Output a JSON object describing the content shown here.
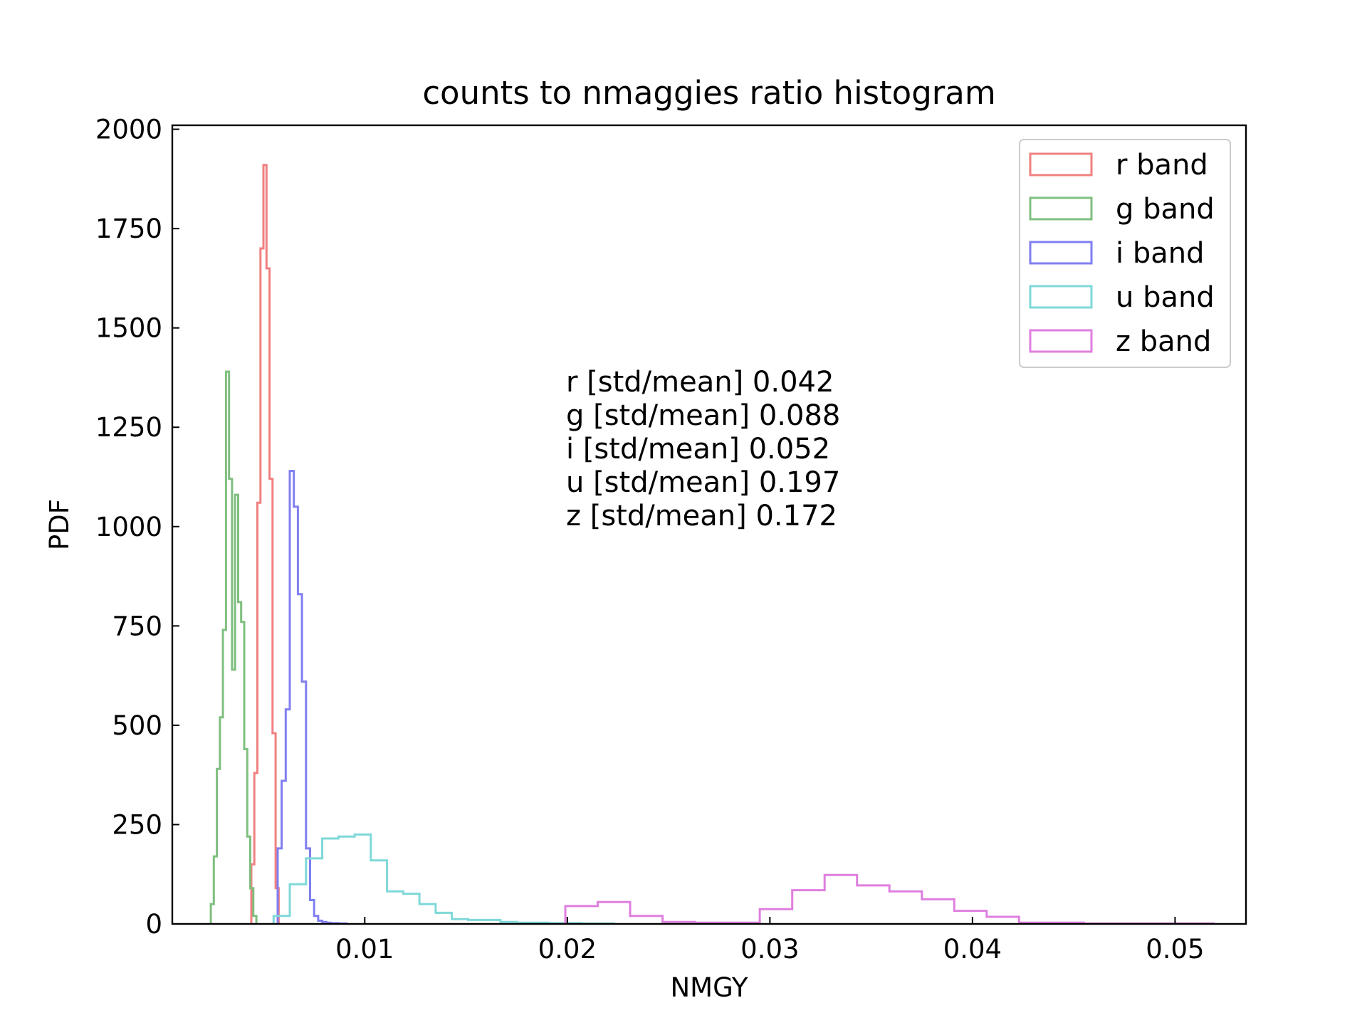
{
  "chart_data": {
    "type": "histogram",
    "title": "counts to nmaggies ratio histogram",
    "xlabel": "NMGY",
    "ylabel": "PDF",
    "xlim": [
      0.0005,
      0.0535
    ],
    "ylim": [
      0,
      2010
    ],
    "xticks": [
      0.01,
      0.02,
      0.03,
      0.04,
      0.05
    ],
    "xtick_labels": [
      "0.01",
      "0.02",
      "0.03",
      "0.04",
      "0.05"
    ],
    "yticks": [
      0,
      250,
      500,
      750,
      1000,
      1250,
      1500,
      1750,
      2000
    ],
    "ytick_labels": [
      "0",
      "250",
      "500",
      "750",
      "1000",
      "1250",
      "1500",
      "1750",
      "2000"
    ],
    "legend_position": "upper right",
    "tick_direction": "in",
    "grid": false,
    "series": [
      {
        "name": "r band",
        "color": "#f08080",
        "edges": [
          0.0044,
          0.00455,
          0.0047,
          0.00485,
          0.005,
          0.00515,
          0.0053,
          0.00545,
          0.0056,
          0.00575
        ],
        "values": [
          150,
          380,
          1060,
          1700,
          1910,
          1650,
          1120,
          480,
          90
        ]
      },
      {
        "name": "g band",
        "color": "#7fbf7f",
        "edges": [
          0.0024,
          0.00255,
          0.0027,
          0.00285,
          0.003,
          0.00315,
          0.0033,
          0.00345,
          0.0036,
          0.00375,
          0.0039,
          0.00405,
          0.0042,
          0.00435,
          0.0045,
          0.00465
        ],
        "values": [
          50,
          170,
          390,
          520,
          740,
          1390,
          1120,
          640,
          1080,
          810,
          760,
          440,
          220,
          90,
          20
        ]
      },
      {
        "name": "i band",
        "color": "#7f7ff0",
        "edges": [
          0.0057,
          0.0059,
          0.0061,
          0.0063,
          0.0065,
          0.0067,
          0.0069,
          0.0071,
          0.0073,
          0.0075,
          0.0077,
          0.0079,
          0.0081,
          0.0083,
          0.0085,
          0.0087,
          0.0089,
          0.0091
        ],
        "values": [
          190,
          360,
          540,
          1140,
          1050,
          830,
          610,
          190,
          60,
          20,
          8,
          5,
          3,
          2,
          2,
          1,
          1
        ]
      },
      {
        "name": "u band",
        "color": "#7fd8d8",
        "edges": [
          0.0055,
          0.0063,
          0.0071,
          0.0079,
          0.0087,
          0.0095,
          0.0103,
          0.0111,
          0.0119,
          0.0127,
          0.0135,
          0.0143,
          0.0151,
          0.0159,
          0.0167,
          0.0175,
          0.0183,
          0.0191,
          0.0199,
          0.0207,
          0.0215,
          0.0223
        ],
        "values": [
          20,
          100,
          165,
          215,
          220,
          225,
          160,
          82,
          76,
          50,
          28,
          12,
          10,
          10,
          5,
          3,
          3,
          2,
          2,
          1,
          1
        ]
      },
      {
        "name": "z band",
        "color": "#df7fdf",
        "edges": [
          0.0199,
          0.0215,
          0.0231,
          0.0247,
          0.0263,
          0.0279,
          0.0295,
          0.0311,
          0.0327,
          0.0343,
          0.0359,
          0.0375,
          0.0391,
          0.0407,
          0.0423,
          0.0439,
          0.0455,
          0.0471,
          0.0487,
          0.0503,
          0.0519
        ],
        "values": [
          45,
          55,
          20,
          5,
          3,
          3,
          37,
          85,
          123,
          97,
          82,
          62,
          33,
          18,
          3,
          3,
          1,
          1,
          1,
          1
        ]
      }
    ],
    "annotations": [
      "r [std/mean] 0.042",
      "g [std/mean] 0.088",
      "i [std/mean] 0.052",
      "u [std/mean] 0.197",
      "z [std/mean] 0.172"
    ]
  }
}
